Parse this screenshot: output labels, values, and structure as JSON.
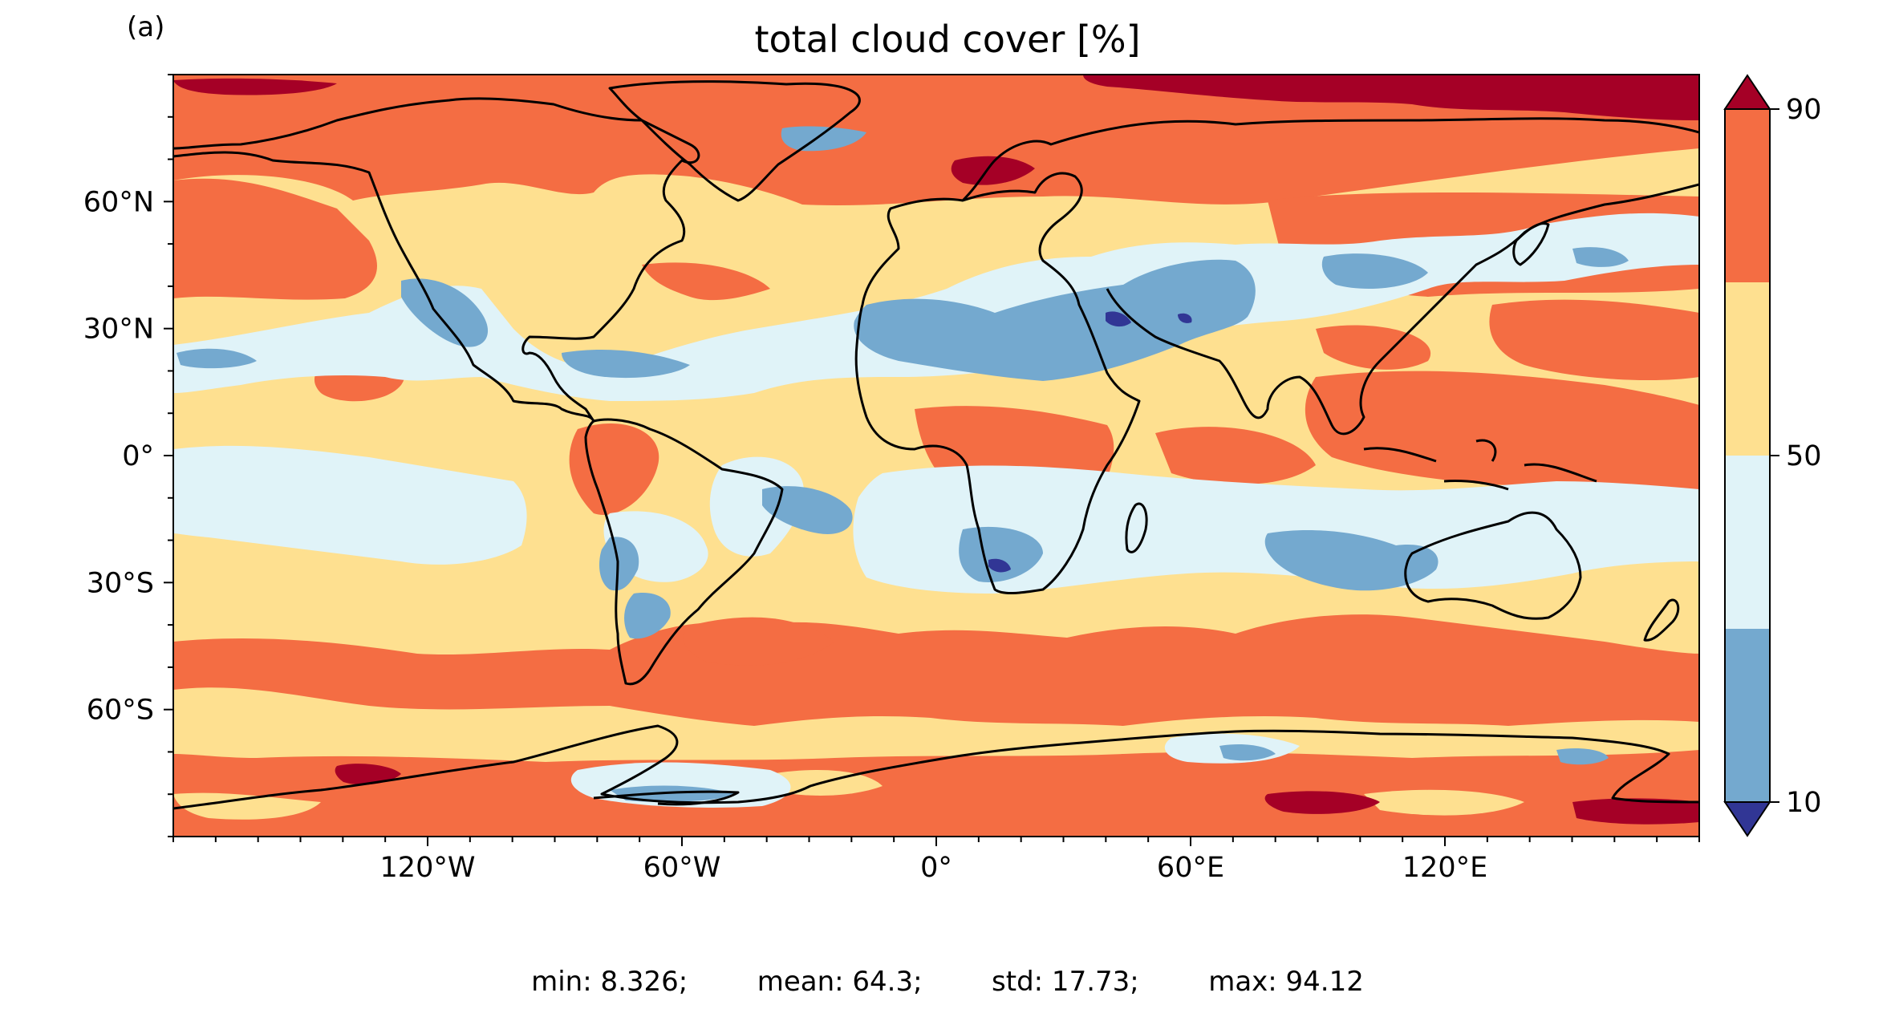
{
  "panel_label": "(a)",
  "title": "total cloud cover [%]",
  "map": {
    "projection": "plate-carree",
    "lon_range": [
      -180,
      180
    ],
    "lat_range": [
      -90,
      90
    ],
    "coastlines": true,
    "xticks": [
      {
        "lon": -120,
        "label": "120°W"
      },
      {
        "lon": -60,
        "label": "60°W"
      },
      {
        "lon": 0,
        "label": "0°"
      },
      {
        "lon": 60,
        "label": "60°E"
      },
      {
        "lon": 120,
        "label": "120°E"
      }
    ],
    "yticks": [
      {
        "lat": 60,
        "label": "60°N"
      },
      {
        "lat": 30,
        "label": "30°N"
      },
      {
        "lat": 0,
        "label": "0°"
      },
      {
        "lat": -30,
        "label": "30°S"
      },
      {
        "lat": -60,
        "label": "60°S"
      }
    ]
  },
  "colorbar": {
    "levels": [
      10,
      30,
      50,
      70,
      90
    ],
    "tick_labels": [
      {
        "value": 90,
        "label": "90"
      },
      {
        "value": 50,
        "label": "50"
      },
      {
        "value": 10,
        "label": "10"
      }
    ],
    "colors": [
      "#74a9cf",
      "#e0f3f8",
      "#fee090",
      "#f46d43"
    ],
    "under_color": "#313695",
    "over_color": "#a50026",
    "extend": "both"
  },
  "stats": {
    "min": "min: 8.326;",
    "mean": "mean: 64.3;",
    "std": "std: 17.73;",
    "max": "max: 94.12"
  }
}
